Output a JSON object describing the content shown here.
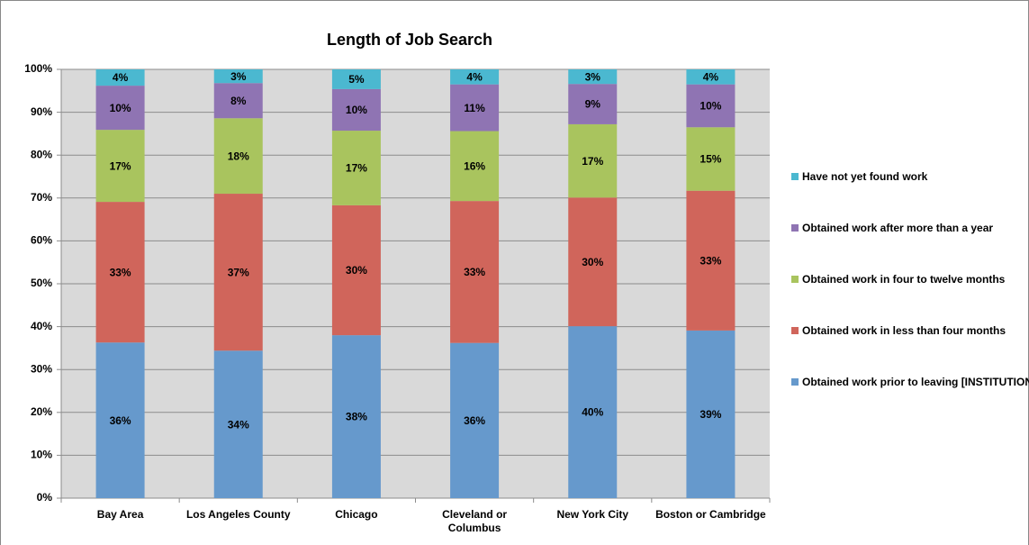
{
  "chart_data": {
    "type": "stacked_bar",
    "title": "Length of Job Search",
    "categories": [
      "Bay Area",
      "Los Angeles County",
      "Chicago",
      "Cleveland or Columbus",
      "New York City",
      "Boston or Cambridge"
    ],
    "series": [
      {
        "name": "Obtained work prior to leaving [INSTITUTION]",
        "color": "#6699cc",
        "values": [
          36.3,
          34.4,
          38.0,
          36.2,
          40.1,
          39.1
        ],
        "value_labels": [
          "36%",
          "34%",
          "38%",
          "36%",
          "40%",
          "39%"
        ]
      },
      {
        "name": "Obtained work in less than four months",
        "color": "#d0655b",
        "values": [
          32.8,
          36.6,
          30.3,
          33.1,
          30.0,
          32.6
        ],
        "value_labels": [
          "33%",
          "37%",
          "30%",
          "33%",
          "30%",
          "33%"
        ]
      },
      {
        "name": "Obtained work in four to twelve months",
        "color": "#a9c45e",
        "values": [
          16.8,
          17.6,
          17.4,
          16.3,
          17.1,
          14.8
        ],
        "value_labels": [
          "17%",
          "18%",
          "17%",
          "16%",
          "17%",
          "15%"
        ]
      },
      {
        "name": "Obtained work after more than a year",
        "color": "#8f74b3",
        "values": [
          10.3,
          8.2,
          9.7,
          10.9,
          9.4,
          10.0
        ],
        "value_labels": [
          "10%",
          "8%",
          "10%",
          "11%",
          "9%",
          "10%"
        ]
      },
      {
        "name": "Have not yet found work",
        "color": "#4bb8d0",
        "values": [
          3.8,
          3.2,
          4.6,
          3.5,
          3.4,
          3.5
        ],
        "value_labels": [
          "4%",
          "3%",
          "5%",
          "4%",
          "3%",
          "4%"
        ]
      }
    ],
    "ylim": [
      0,
      100
    ],
    "yticks": [
      {
        "value": 0,
        "label": "0%"
      },
      {
        "value": 10,
        "label": "10%"
      },
      {
        "value": 20,
        "label": "20%"
      },
      {
        "value": 30,
        "label": "30%"
      },
      {
        "value": 40,
        "label": "40%"
      },
      {
        "value": 50,
        "label": "50%"
      },
      {
        "value": 60,
        "label": "60%"
      },
      {
        "value": 70,
        "label": "70%"
      },
      {
        "value": 80,
        "label": "80%"
      },
      {
        "value": 90,
        "label": "90%"
      },
      {
        "value": 100,
        "label": "100%"
      }
    ],
    "grid": true,
    "legend": "right"
  }
}
